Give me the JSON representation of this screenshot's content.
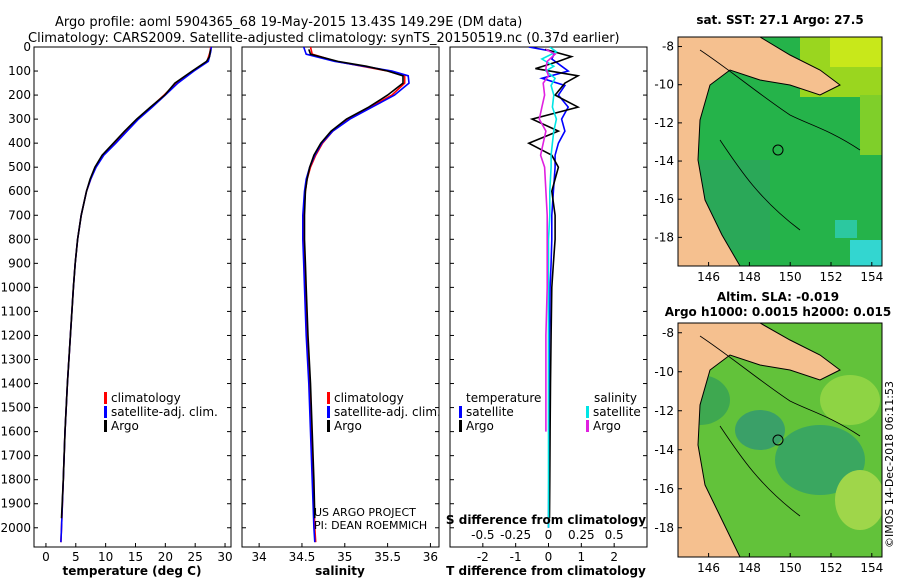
{
  "title": {
    "line1": "Argo profile: aoml 5904365_68 19-May-2015 13.43S 149.29E (DM data)",
    "line2": "Climatology: CARS2009. Satellite-adjusted climatology: synTS_20150519.nc (0.37d earlier)"
  },
  "depth_ticks": [
    "0",
    "100",
    "200",
    "300",
    "400",
    "500",
    "600",
    "700",
    "800",
    "900",
    "1000",
    "1100",
    "1200",
    "1300",
    "1400",
    "1500",
    "1600",
    "1700",
    "1800",
    "1900",
    "2000"
  ],
  "colors": {
    "climatology": "#ff0000",
    "satellite": "#0000ff",
    "argo": "#000000",
    "sat_salinity": "#00e5e5",
    "argo_salinity": "#e020e0"
  },
  "chart_data": [
    {
      "type": "line",
      "name": "temperature",
      "xlabel": "temperature (deg C)",
      "xlim": [
        -2,
        31
      ],
      "ylim": [
        0,
        2080
      ],
      "xticks": [
        "0",
        "5",
        "10",
        "15",
        "20",
        "25",
        "30"
      ],
      "xtick_values": [
        0,
        5,
        10,
        15,
        20,
        25,
        30
      ],
      "legend": [
        "climatology",
        "satellite-adj. clim.",
        "Argo"
      ],
      "series": [
        {
          "name": "climatology",
          "depth": [
            0,
            20,
            60,
            100,
            150,
            200,
            250,
            300,
            350,
            400,
            450,
            500,
            550,
            600,
            700,
            800,
            900,
            1000,
            1200,
            1400,
            1600,
            1800,
            2000,
            2060
          ],
          "values": [
            27.6,
            27.5,
            27.0,
            24.6,
            21.8,
            19.8,
            17.6,
            15.3,
            13.5,
            11.6,
            9.6,
            8.3,
            7.5,
            6.8,
            5.9,
            5.3,
            4.9,
            4.6,
            4.1,
            3.6,
            3.2,
            2.9,
            2.6,
            2.5
          ]
        },
        {
          "name": "satellite-adj. clim.",
          "depth": [
            0,
            20,
            60,
            100,
            150,
            200,
            250,
            300,
            350,
            400,
            450,
            500,
            550,
            600,
            700,
            800,
            900,
            1000,
            1200,
            1400,
            1600,
            1800,
            2000,
            2060
          ],
          "values": [
            27.7,
            27.6,
            27.2,
            24.8,
            22.1,
            20.0,
            17.8,
            15.5,
            13.6,
            11.7,
            9.7,
            8.4,
            7.5,
            6.8,
            5.9,
            5.3,
            4.9,
            4.6,
            4.1,
            3.6,
            3.2,
            2.9,
            2.6,
            2.5
          ]
        },
        {
          "name": "Argo",
          "depth": [
            10,
            20,
            40,
            60,
            100,
            150,
            200,
            250,
            300,
            350,
            400,
            450,
            500,
            550,
            600,
            700,
            800,
            900,
            1000,
            1200,
            1400,
            1600,
            1800,
            1960
          ],
          "values": [
            27.6,
            27.5,
            27.4,
            26.9,
            24.5,
            21.6,
            19.9,
            17.5,
            15.2,
            13.2,
            11.3,
            9.4,
            8.2,
            7.4,
            6.8,
            5.9,
            5.3,
            4.9,
            4.6,
            4.1,
            3.6,
            3.2,
            2.9,
            2.6
          ]
        }
      ]
    },
    {
      "type": "line",
      "name": "salinity",
      "xlabel": "salinity",
      "xlim": [
        33.8,
        36.1
      ],
      "ylim": [
        0,
        2080
      ],
      "xticks": [
        "34",
        "34.5",
        "35",
        "35.5",
        "36"
      ],
      "xtick_values": [
        34,
        34.5,
        35,
        35.5,
        36
      ],
      "legend": [
        "climatology",
        "satellite-adj. clim.",
        "Argo"
      ],
      "annotation": [
        "US ARGO PROJECT",
        "PI: DEAN ROEMMICH"
      ],
      "series": [
        {
          "name": "climatology",
          "depth": [
            0,
            30,
            60,
            80,
            100,
            120,
            150,
            200,
            250,
            300,
            350,
            400,
            450,
            500,
            550,
            600,
            700,
            800,
            900,
            1000,
            1200,
            1400,
            1600,
            1800,
            2000,
            2060
          ],
          "values": [
            34.6,
            34.62,
            34.9,
            35.2,
            35.5,
            35.7,
            35.7,
            35.55,
            35.3,
            35.05,
            34.86,
            34.74,
            34.66,
            34.6,
            34.56,
            34.54,
            34.52,
            34.52,
            34.53,
            34.54,
            34.56,
            34.59,
            34.61,
            34.63,
            34.65,
            34.66
          ]
        },
        {
          "name": "satellite-adj. clim.",
          "depth": [
            0,
            30,
            60,
            80,
            100,
            120,
            150,
            200,
            250,
            300,
            350,
            400,
            450,
            500,
            550,
            600,
            700,
            800,
            900,
            1000,
            1200,
            1400,
            1600,
            1800,
            2000,
            2060
          ],
          "values": [
            34.52,
            34.55,
            34.88,
            35.22,
            35.55,
            35.74,
            35.75,
            35.58,
            35.32,
            35.06,
            34.86,
            34.73,
            34.65,
            34.59,
            34.55,
            34.53,
            34.51,
            34.51,
            34.52,
            34.53,
            34.55,
            34.58,
            34.6,
            34.62,
            34.64,
            34.65
          ]
        },
        {
          "name": "Argo",
          "depth": [
            10,
            30,
            60,
            80,
            100,
            120,
            150,
            200,
            250,
            300,
            350,
            400,
            450,
            500,
            550,
            600,
            700,
            800,
            900,
            1000,
            1200,
            1400,
            1600,
            1800,
            1960
          ],
          "values": [
            34.58,
            34.6,
            34.92,
            35.25,
            35.5,
            35.68,
            35.68,
            35.5,
            35.28,
            35.02,
            34.84,
            34.72,
            34.64,
            34.59,
            34.56,
            34.54,
            34.53,
            34.53,
            34.54,
            34.55,
            34.57,
            34.6,
            34.62,
            34.64,
            34.65
          ]
        }
      ]
    },
    {
      "type": "line",
      "name": "difference",
      "xlabel": "T difference from climatology",
      "xlabel_top": "S difference from climatology",
      "xlim": [
        -3,
        3
      ],
      "ylim": [
        0,
        2080
      ],
      "xticks": [
        "-2",
        "-1",
        "0",
        "1",
        "2"
      ],
      "xtick_values": [
        -2,
        -1,
        0,
        1,
        2
      ],
      "xticks_top": [
        "-0.5",
        "-0.25",
        "0",
        "0.25",
        "0.5"
      ],
      "legend_left_title": "temperature",
      "legend_right_title": "salinity",
      "legend_left": [
        "satellite",
        "Argo"
      ],
      "legend_right": [
        "satellite",
        "Argo"
      ],
      "series": [
        {
          "name": "T satellite",
          "depth": [
            0,
            20,
            50,
            80,
            100,
            130,
            160,
            200,
            250,
            300,
            350,
            400,
            450,
            500,
            600,
            700,
            800,
            900,
            1000,
            1200,
            1500,
            1800,
            2000
          ],
          "values": [
            -0.6,
            0.2,
            0.1,
            0.4,
            0.6,
            -0.2,
            0.5,
            0.3,
            0.6,
            0.4,
            0.5,
            0.3,
            0.2,
            0.2,
            0.15,
            0.1,
            0.1,
            0.08,
            0.05,
            0.03,
            0.02,
            0.01,
            0.0
          ]
        },
        {
          "name": "T Argo",
          "depth": [
            10,
            40,
            60,
            90,
            120,
            150,
            200,
            250,
            300,
            350,
            400,
            450,
            500,
            600,
            700,
            800,
            900,
            1000,
            1200,
            1400,
            1600,
            1800,
            1960
          ],
          "values": [
            -0.1,
            0.7,
            0.3,
            -0.4,
            0.9,
            0.5,
            0.2,
            0.9,
            -0.5,
            0.3,
            -0.6,
            0.1,
            0.3,
            0.1,
            0.2,
            0.2,
            0.15,
            0.1,
            0.08,
            0.06,
            0.05,
            0.04,
            0.03
          ]
        },
        {
          "name": "S satellite",
          "depth": [
            0,
            20,
            50,
            80,
            100,
            130,
            160,
            200,
            250,
            300,
            350,
            400,
            450,
            500,
            600,
            700,
            800,
            900,
            1000,
            1200,
            1500,
            1800,
            2000
          ],
          "values": [
            0.01,
            0.06,
            -0.05,
            0.04,
            -0.02,
            0.05,
            0.02,
            0.04,
            0.03,
            0.06,
            0.04,
            0.03,
            0.02,
            0.02,
            0.01,
            0.01,
            0.0,
            0.0,
            0.0,
            0.0,
            0.0,
            0.0,
            0.0
          ]
        },
        {
          "name": "S Argo",
          "depth": [
            10,
            30,
            60,
            90,
            120,
            150,
            200,
            250,
            300,
            350,
            400,
            450,
            500,
            600,
            700,
            800,
            900,
            1000,
            1200,
            1400,
            1600
          ],
          "values": [
            -0.02,
            0.05,
            -0.01,
            -0.02,
            0.0,
            -0.04,
            -0.03,
            -0.05,
            -0.07,
            -0.02,
            -0.04,
            -0.06,
            -0.03,
            -0.02,
            -0.01,
            -0.01,
            -0.01,
            -0.01,
            -0.02,
            -0.02,
            -0.02
          ]
        }
      ]
    }
  ],
  "maps": [
    {
      "title": "sat. SST: 27.1  Argo: 27.5",
      "yticks": [
        "-8",
        "-10",
        "-12",
        "-14",
        "-16",
        "-18"
      ],
      "xticks": [
        "146",
        "148",
        "150",
        "152",
        "154"
      ]
    },
    {
      "title_line1": "Altim. SLA: -0.019",
      "title_line2": "Argo h1000: 0.0015 h2000: 0.015",
      "yticks": [
        "-8",
        "-10",
        "-12",
        "-14",
        "-16",
        "-18"
      ],
      "xticks": [
        "146",
        "148",
        "150",
        "152",
        "154"
      ]
    }
  ],
  "watermark": "©IMOS 14-Dec-2018 06:11:53"
}
